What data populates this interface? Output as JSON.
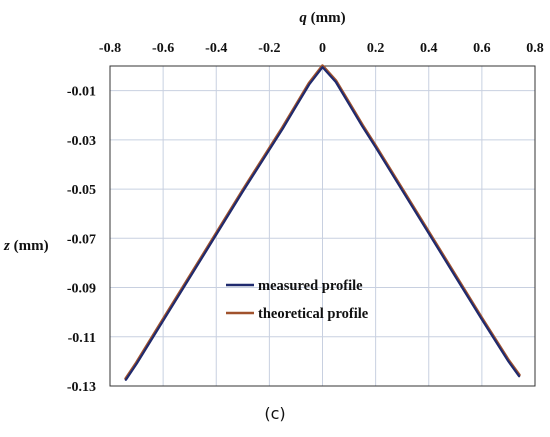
{
  "figure": {
    "panel_label": "(c)"
  },
  "chart_data": {
    "type": "line",
    "title": "",
    "xlabel": "q (mm)",
    "xlabel_var": "q",
    "xlabel_unit": " (mm)",
    "ylabel": "z (mm)",
    "ylabel_var": "z",
    "ylabel_unit": " (mm)",
    "x_axis_position": "top",
    "xlim": [
      -0.8,
      0.8
    ],
    "ylim": [
      -0.13,
      0.0
    ],
    "x_ticks": [
      -0.8,
      -0.6,
      -0.4,
      -0.2,
      0,
      0.2,
      0.4,
      0.6,
      0.8
    ],
    "x_tick_labels": [
      "-0.8",
      "-0.6",
      "-0.4",
      "-0.2",
      "0",
      "0.2",
      "0.4",
      "0.6",
      "0.8"
    ],
    "y_ticks": [
      -0.01,
      -0.03,
      -0.05,
      -0.07,
      -0.09,
      -0.11,
      -0.13
    ],
    "y_tick_labels": [
      "-0.01",
      "-0.03",
      "-0.05",
      "-0.07",
      "-0.09",
      "-0.11",
      "-0.13"
    ],
    "grid": true,
    "legend_position": "lower-center",
    "series": [
      {
        "name": "measured profile",
        "color": "#1f2a6e",
        "x": [
          -0.74,
          -0.7,
          -0.6,
          -0.5,
          -0.4,
          -0.3,
          -0.2,
          -0.15,
          -0.1,
          -0.05,
          0,
          0.05,
          0.1,
          0.15,
          0.2,
          0.3,
          0.4,
          0.5,
          0.6,
          0.7,
          0.74
        ],
        "y": [
          -0.1275,
          -0.121,
          -0.1035,
          -0.086,
          -0.0685,
          -0.051,
          -0.034,
          -0.0255,
          -0.0165,
          -0.0075,
          -0.0005,
          -0.0065,
          -0.0155,
          -0.0245,
          -0.033,
          -0.0505,
          -0.068,
          -0.0855,
          -0.103,
          -0.12,
          -0.126
        ]
      },
      {
        "name": "theoretical profile",
        "color": "#a0522d",
        "x": [
          -0.74,
          -0.7,
          -0.6,
          -0.5,
          -0.4,
          -0.3,
          -0.2,
          -0.15,
          -0.1,
          -0.05,
          0,
          0.05,
          0.1,
          0.15,
          0.2,
          0.3,
          0.4,
          0.5,
          0.6,
          0.7,
          0.74
        ],
        "y": [
          -0.127,
          -0.1205,
          -0.103,
          -0.0855,
          -0.068,
          -0.0505,
          -0.0335,
          -0.025,
          -0.016,
          -0.007,
          0.0,
          -0.006,
          -0.015,
          -0.024,
          -0.0325,
          -0.05,
          -0.0675,
          -0.085,
          -0.1025,
          -0.1195,
          -0.1255
        ]
      }
    ]
  }
}
